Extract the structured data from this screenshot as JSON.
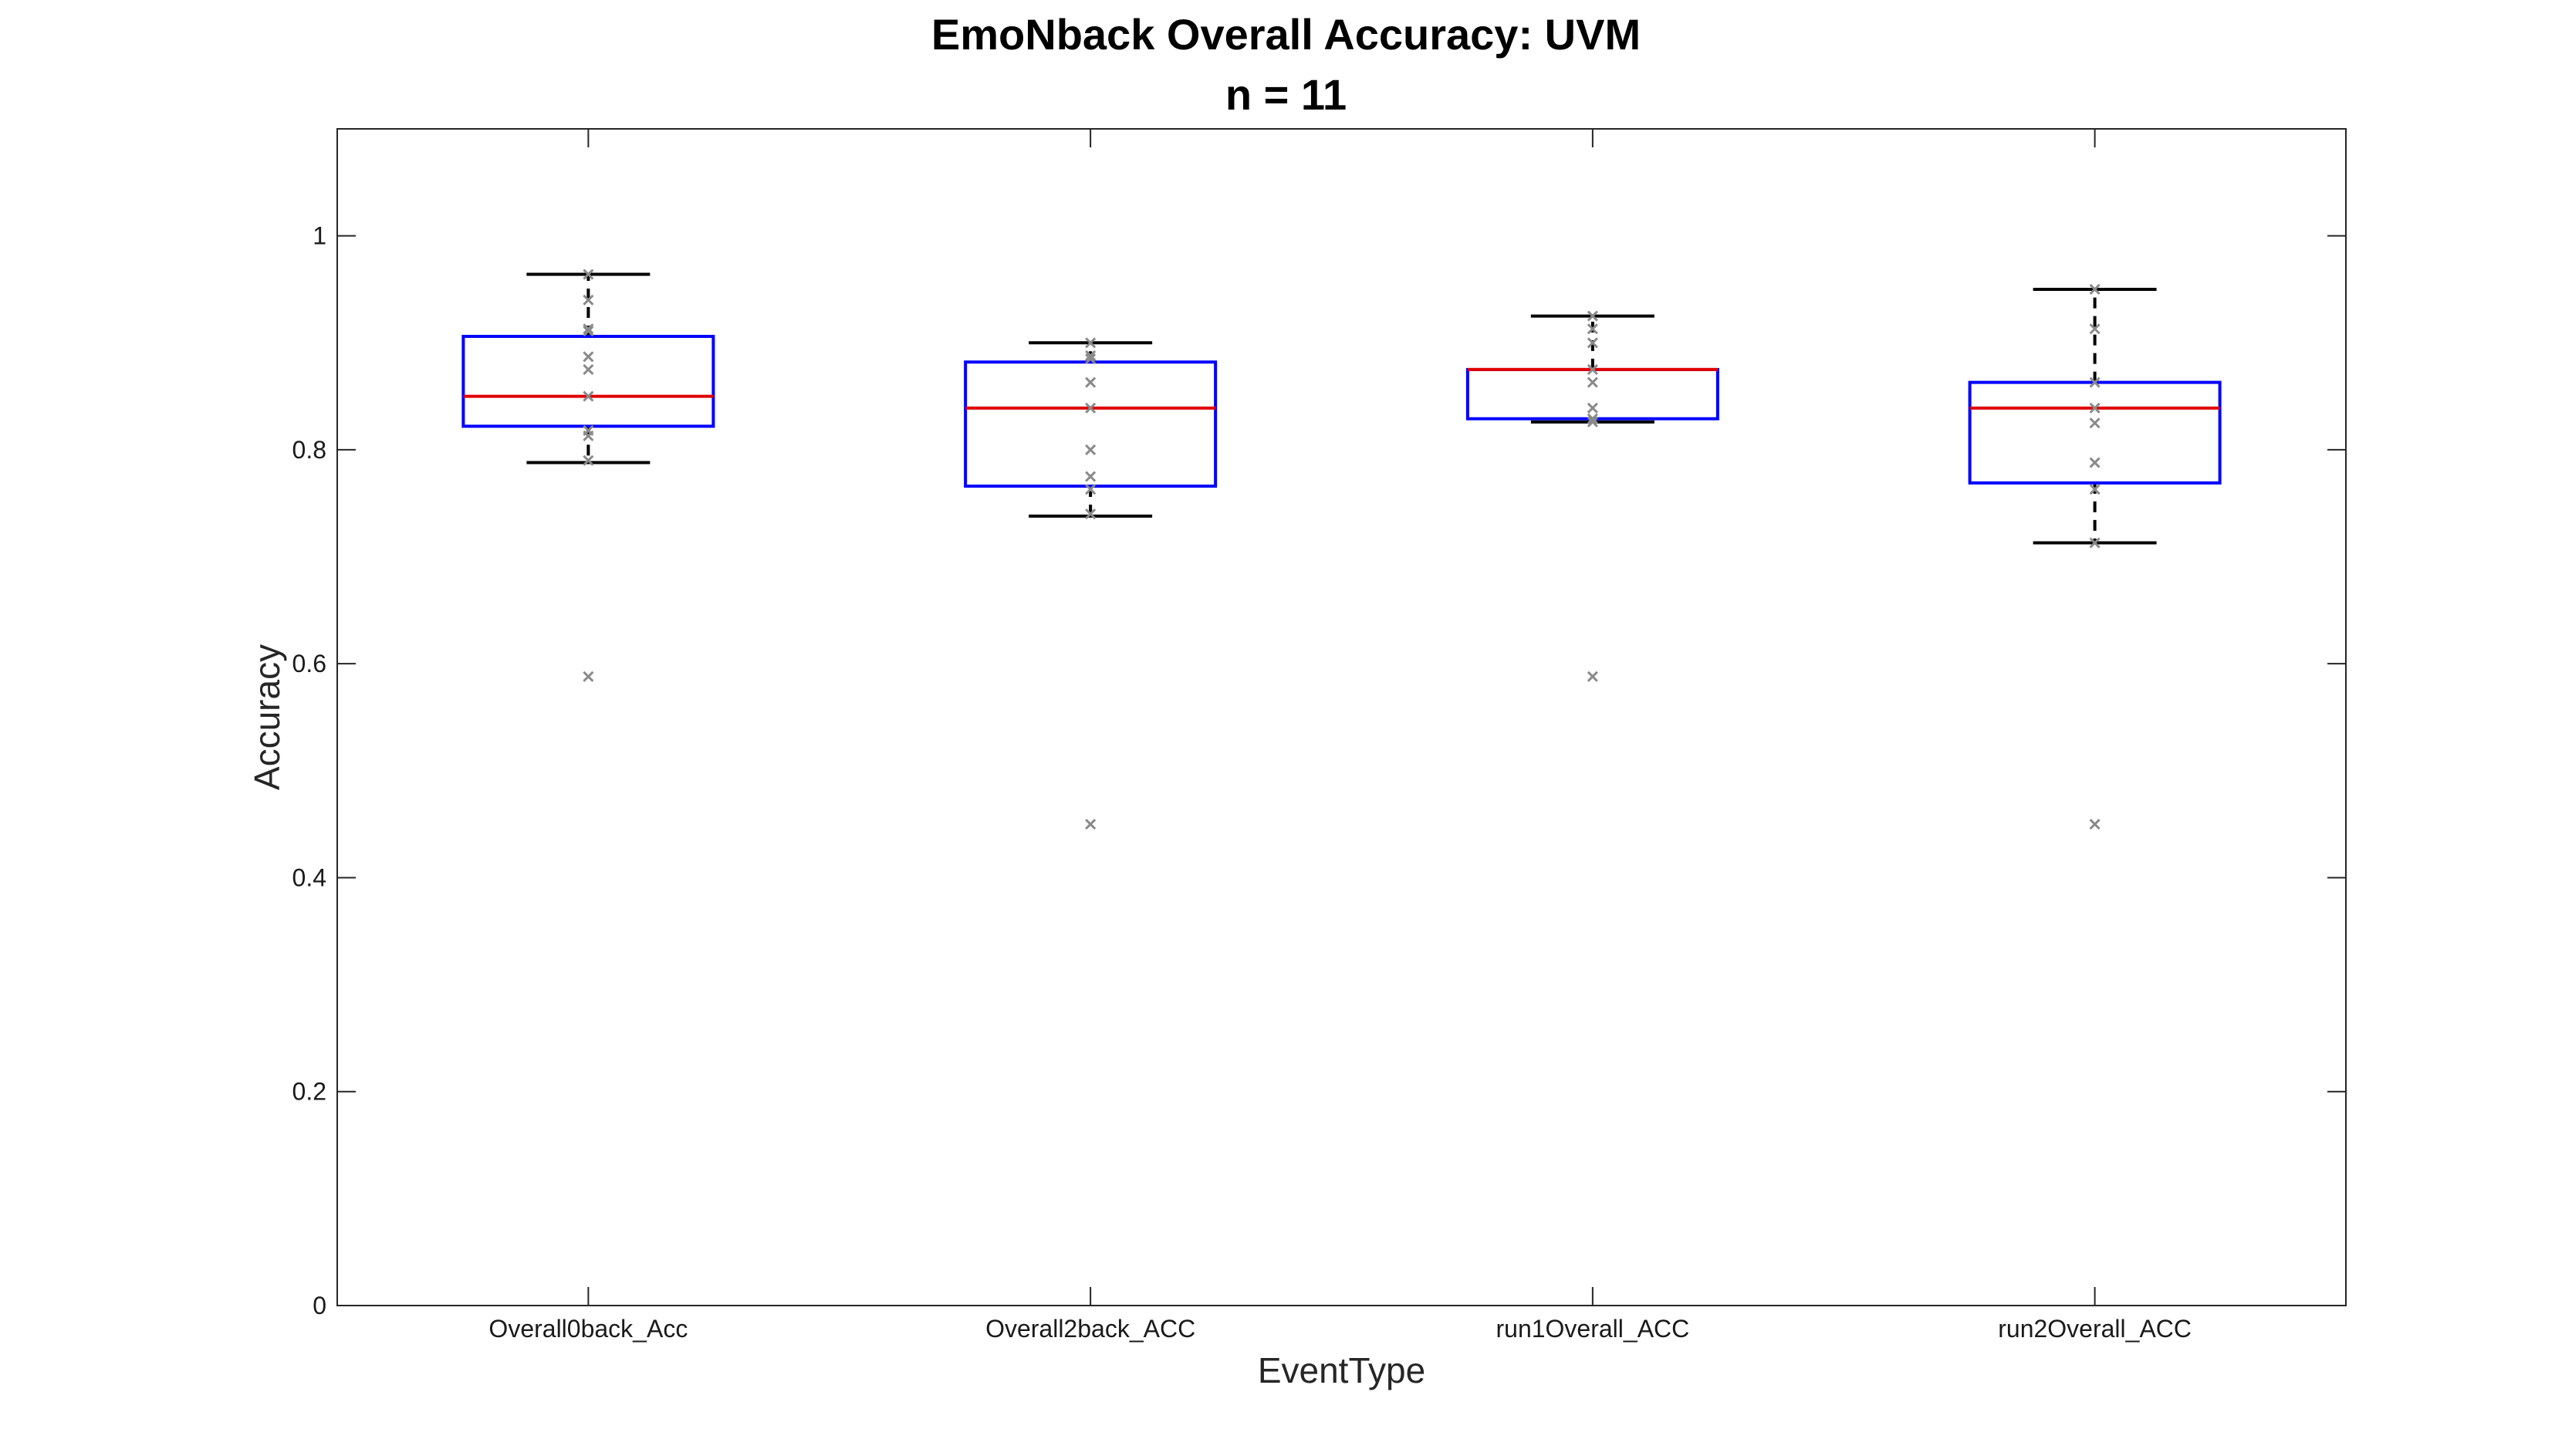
{
  "chart_data": {
    "type": "box",
    "title": "EmoNback Overall Accuracy: UVM",
    "subtitle": "n = 11",
    "xlabel": "EventType",
    "ylabel": "Accuracy",
    "ylim": [
      0,
      1.1
    ],
    "yticks": [
      "0",
      "0.2",
      "0.4",
      "0.6",
      "0.8",
      "1"
    ],
    "categories": [
      "Overall0back_Acc",
      "Overall2back_ACC",
      "run1Overall_ACC",
      "run2Overall_ACC"
    ],
    "boxes": [
      {
        "name": "Overall0back_Acc",
        "whisker_low": 0.788,
        "q1": 0.822,
        "median": 0.85,
        "q3": 0.906,
        "whisker_high": 0.964,
        "points": [
          0.964,
          0.94,
          0.913,
          0.911,
          0.887,
          0.875,
          0.85,
          0.818,
          0.813,
          0.79,
          0.588
        ]
      },
      {
        "name": "Overall2back_ACC",
        "whisker_low": 0.738,
        "q1": 0.766,
        "median": 0.839,
        "q3": 0.882,
        "whisker_high": 0.9,
        "points": [
          0.9,
          0.888,
          0.885,
          0.863,
          0.839,
          0.8,
          0.775,
          0.763,
          0.74,
          0.45
        ]
      },
      {
        "name": "run1Overall_ACC",
        "whisker_low": 0.826,
        "q1": 0.829,
        "median": 0.875,
        "q3": 0.875,
        "whisker_high": 0.925,
        "points": [
          0.925,
          0.913,
          0.9,
          0.875,
          0.863,
          0.839,
          0.829,
          0.826,
          0.588
        ]
      },
      {
        "name": "run2Overall_ACC",
        "whisker_low": 0.713,
        "q1": 0.769,
        "median": 0.839,
        "q3": 0.863,
        "whisker_high": 0.95,
        "points": [
          0.95,
          0.913,
          0.863,
          0.839,
          0.825,
          0.788,
          0.763,
          0.713,
          0.45
        ]
      }
    ],
    "colors": {
      "box": "#0000ff",
      "median": "#e00000",
      "whisker": "#000000",
      "point": "#8a8a8a"
    },
    "grid": false,
    "legend": "none"
  }
}
